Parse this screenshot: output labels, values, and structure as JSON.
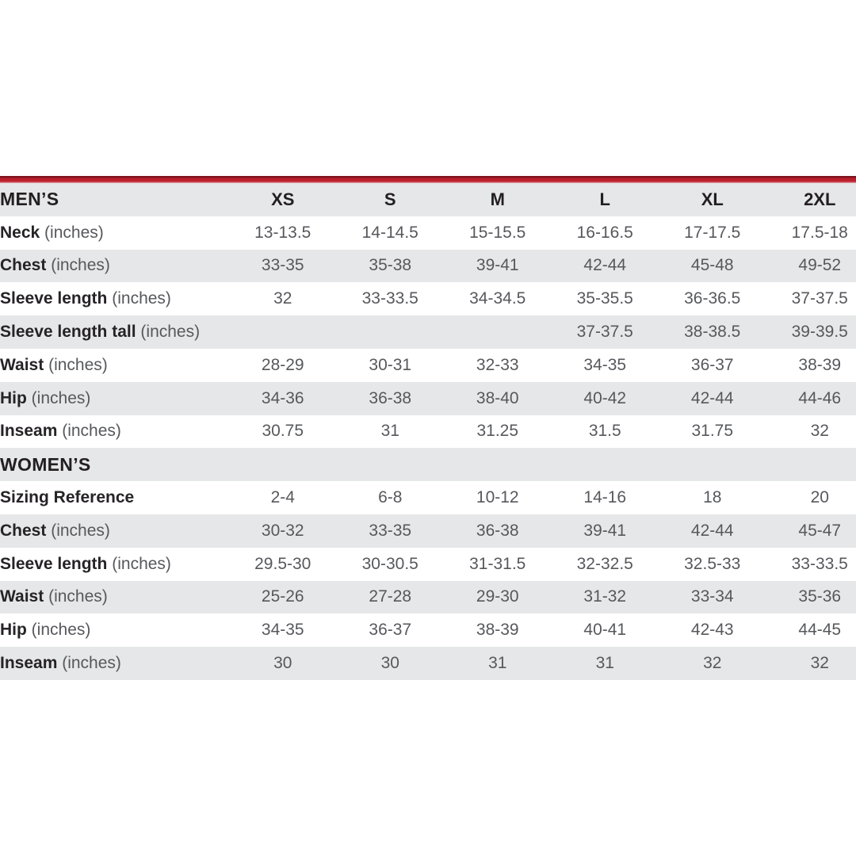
{
  "colors": {
    "accent_red": "#bb1f2c",
    "accent_red_dark": "#7f141f",
    "stripe_gray": "#e6e7e8",
    "text_dark": "#262326",
    "text_gray": "#57585c"
  },
  "sizes": [
    "XS",
    "S",
    "M",
    "L",
    "XL",
    "2XL"
  ],
  "mens": {
    "title": "MEN’S",
    "rows": [
      {
        "label": "Neck",
        "unit": "(inches)",
        "values": [
          "13-13.5",
          "14-14.5",
          "15-15.5",
          "16-16.5",
          "17-17.5",
          "17.5-18"
        ]
      },
      {
        "label": "Chest",
        "unit": "(inches)",
        "values": [
          "33-35",
          "35-38",
          "39-41",
          "42-44",
          "45-48",
          "49-52"
        ]
      },
      {
        "label": "Sleeve length",
        "unit": "(inches)",
        "values": [
          "32",
          "33-33.5",
          "34-34.5",
          "35-35.5",
          "36-36.5",
          "37-37.5"
        ]
      },
      {
        "label": "Sleeve length tall",
        "unit": "(inches)",
        "values": [
          "",
          "",
          "",
          "37-37.5",
          "38-38.5",
          "39-39.5"
        ]
      },
      {
        "label": "Waist",
        "unit": "(inches)",
        "values": [
          "28-29",
          "30-31",
          "32-33",
          "34-35",
          "36-37",
          "38-39"
        ]
      },
      {
        "label": "Hip",
        "unit": "(inches)",
        "values": [
          "34-36",
          "36-38",
          "38-40",
          "40-42",
          "42-44",
          "44-46"
        ]
      },
      {
        "label": "Inseam",
        "unit": "(inches)",
        "values": [
          "30.75",
          "31",
          "31.25",
          "31.5",
          "31.75",
          "32"
        ]
      }
    ]
  },
  "womens": {
    "title": "WOMEN’S",
    "rows": [
      {
        "label": "Sizing Reference",
        "unit": "",
        "values": [
          "2-4",
          "6-8",
          "10-12",
          "14-16",
          "18",
          "20"
        ]
      },
      {
        "label": "Chest",
        "unit": "(inches)",
        "values": [
          "30-32",
          "33-35",
          "36-38",
          "39-41",
          "42-44",
          "45-47"
        ]
      },
      {
        "label": "Sleeve length",
        "unit": "(inches)",
        "values": [
          "29.5-30",
          "30-30.5",
          "31-31.5",
          "32-32.5",
          "32.5-33",
          "33-33.5"
        ]
      },
      {
        "label": "Waist",
        "unit": "(inches)",
        "values": [
          "25-26",
          "27-28",
          "29-30",
          "31-32",
          "33-34",
          "35-36"
        ]
      },
      {
        "label": "Hip",
        "unit": "(inches)",
        "values": [
          "34-35",
          "36-37",
          "38-39",
          "40-41",
          "42-43",
          "44-45"
        ]
      },
      {
        "label": "Inseam",
        "unit": "(inches)",
        "values": [
          "30",
          "30",
          "31",
          "31",
          "32",
          "32"
        ]
      }
    ]
  }
}
